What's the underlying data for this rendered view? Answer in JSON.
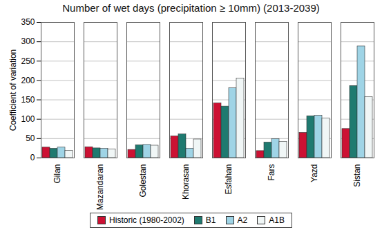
{
  "chart_data": {
    "type": "bar",
    "title": "Number of wet days (precipitation ≥ 10mm) (2013-2039)",
    "y_label": "Coefficient of variation",
    "categories": [
      "Gilan",
      "Mazandaran",
      "Golestan",
      "Khorasan",
      "Esfahan",
      "Fars",
      "Yazd",
      "Sistan"
    ],
    "series": [
      {
        "name": "Historic (1980-2002)",
        "color": "#cc1133",
        "values": [
          27,
          28,
          21,
          56,
          141,
          18,
          65,
          75
        ]
      },
      {
        "name": "B1",
        "color": "#1f7a70",
        "values": [
          24,
          25,
          33,
          61,
          133,
          40,
          108,
          186
        ]
      },
      {
        "name": "A2",
        "color": "#9fd4e6",
        "values": [
          27,
          24,
          34,
          24,
          180,
          49,
          109,
          288
        ]
      },
      {
        "name": "A1B",
        "color": "#f0f6f6",
        "values": [
          19,
          22,
          32,
          48,
          205,
          42,
          102,
          157
        ]
      }
    ],
    "ylim": [
      0,
      350
    ],
    "yticks": [
      0,
      50,
      100,
      150,
      200,
      250,
      300,
      350
    ],
    "grid": true,
    "legend": "bottom"
  }
}
